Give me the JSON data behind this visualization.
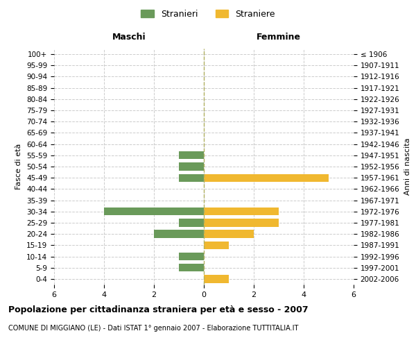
{
  "age_groups": [
    "0-4",
    "5-9",
    "10-14",
    "15-19",
    "20-24",
    "25-29",
    "30-34",
    "35-39",
    "40-44",
    "45-49",
    "50-54",
    "55-59",
    "60-64",
    "65-69",
    "70-74",
    "75-79",
    "80-84",
    "85-89",
    "90-94",
    "95-99",
    "100+"
  ],
  "birth_years": [
    "2002-2006",
    "1997-2001",
    "1992-1996",
    "1987-1991",
    "1982-1986",
    "1977-1981",
    "1972-1976",
    "1967-1971",
    "1962-1966",
    "1957-1961",
    "1952-1956",
    "1947-1951",
    "1942-1946",
    "1937-1941",
    "1932-1936",
    "1927-1931",
    "1922-1926",
    "1917-1921",
    "1912-1916",
    "1907-1911",
    "≤ 1906"
  ],
  "maschi": [
    0,
    1,
    1,
    0,
    2,
    1,
    4,
    0,
    0,
    1,
    1,
    1,
    0,
    0,
    0,
    0,
    0,
    0,
    0,
    0,
    0
  ],
  "femmine": [
    1,
    0,
    0,
    1,
    2,
    3,
    3,
    0,
    0,
    5,
    0,
    0,
    0,
    0,
    0,
    0,
    0,
    0,
    0,
    0,
    0
  ],
  "maschi_color": "#6a9a5a",
  "femmine_color": "#f0b830",
  "xlim": 6,
  "title": "Popolazione per cittadinanza straniera per età e sesso - 2007",
  "subtitle": "COMUNE DI MIGGIANO (LE) - Dati ISTAT 1° gennaio 2007 - Elaborazione TUTTITALIA.IT",
  "xlabel_left": "Maschi",
  "xlabel_right": "Femmine",
  "ylabel_left": "Fasce di età",
  "ylabel_right": "Anni di nascita",
  "legend_maschi": "Stranieri",
  "legend_femmine": "Straniere",
  "bg_color": "#ffffff",
  "grid_color": "#cccccc",
  "bar_height": 0.7
}
